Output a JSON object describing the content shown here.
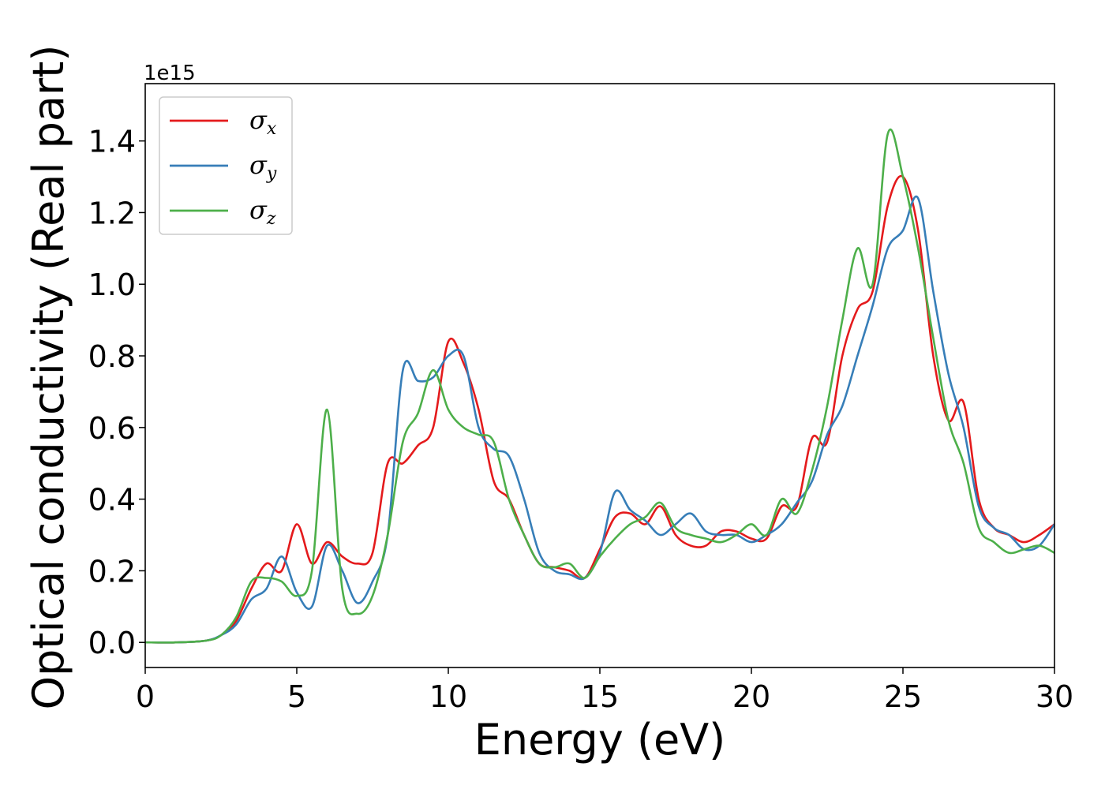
{
  "chart_data": {
    "type": "line",
    "xlabel": "Energy (eV)",
    "ylabel": "Optical conductivity (Real part)",
    "y_offset_text": "1e15",
    "xlim": [
      0,
      30
    ],
    "ylim": [
      -0.07,
      1.56
    ],
    "xticks": [
      0,
      5,
      10,
      15,
      20,
      25,
      30
    ],
    "xtick_labels": [
      "0",
      "5",
      "10",
      "15",
      "20",
      "25",
      "30"
    ],
    "yticks": [
      0.0,
      0.2,
      0.4,
      0.6,
      0.8,
      1.0,
      1.2,
      1.4
    ],
    "ytick_labels": [
      "0.0",
      "0.2",
      "0.4",
      "0.6",
      "0.8",
      "1.0",
      "1.2",
      "1.4"
    ],
    "grid": false,
    "legend_position": "upper-left",
    "x": [
      0,
      1,
      2,
      2.5,
      3,
      3.5,
      4,
      4.5,
      5,
      5.5,
      6,
      6.5,
      7,
      7.5,
      8,
      8.5,
      9,
      9.5,
      10,
      10.5,
      11,
      11.5,
      12,
      12.5,
      13,
      13.5,
      14,
      14.5,
      15,
      15.5,
      16,
      16.5,
      17,
      17.5,
      18,
      18.5,
      19,
      19.5,
      20,
      20.5,
      21,
      21.5,
      22,
      22.5,
      23,
      23.5,
      24,
      24.5,
      25,
      25.5,
      26,
      26.5,
      27,
      27.5,
      28,
      28.5,
      29,
      29.5,
      30
    ],
    "series": [
      {
        "name": "σ",
        "subscript": "x",
        "color": "#e41a1c",
        "values": [
          0,
          0,
          0.005,
          0.02,
          0.06,
          0.15,
          0.22,
          0.2,
          0.33,
          0.22,
          0.28,
          0.24,
          0.22,
          0.25,
          0.5,
          0.5,
          0.55,
          0.6,
          0.84,
          0.78,
          0.65,
          0.45,
          0.4,
          0.3,
          0.22,
          0.21,
          0.2,
          0.18,
          0.26,
          0.35,
          0.36,
          0.33,
          0.38,
          0.3,
          0.27,
          0.27,
          0.31,
          0.31,
          0.29,
          0.29,
          0.38,
          0.38,
          0.57,
          0.56,
          0.8,
          0.93,
          0.98,
          1.22,
          1.3,
          1.15,
          0.8,
          0.62,
          0.67,
          0.4,
          0.32,
          0.3,
          0.28,
          0.3,
          0.33
        ]
      },
      {
        "name": "σ",
        "subscript": "y",
        "color": "#377eb8",
        "values": [
          0,
          0,
          0.005,
          0.02,
          0.05,
          0.12,
          0.15,
          0.24,
          0.14,
          0.1,
          0.27,
          0.2,
          0.11,
          0.17,
          0.3,
          0.76,
          0.73,
          0.74,
          0.8,
          0.8,
          0.6,
          0.54,
          0.52,
          0.4,
          0.25,
          0.2,
          0.19,
          0.18,
          0.25,
          0.42,
          0.37,
          0.34,
          0.3,
          0.33,
          0.36,
          0.31,
          0.3,
          0.3,
          0.28,
          0.3,
          0.33,
          0.39,
          0.45,
          0.58,
          0.66,
          0.8,
          0.94,
          1.1,
          1.15,
          1.24,
          0.98,
          0.75,
          0.6,
          0.38,
          0.32,
          0.3,
          0.26,
          0.27,
          0.33
        ]
      },
      {
        "name": "σ",
        "subscript": "z",
        "color": "#4daf4a",
        "values": [
          0,
          0,
          0.005,
          0.02,
          0.07,
          0.17,
          0.18,
          0.17,
          0.13,
          0.2,
          0.65,
          0.15,
          0.08,
          0.13,
          0.3,
          0.56,
          0.64,
          0.76,
          0.65,
          0.6,
          0.58,
          0.56,
          0.4,
          0.3,
          0.22,
          0.21,
          0.22,
          0.18,
          0.24,
          0.29,
          0.33,
          0.35,
          0.39,
          0.32,
          0.3,
          0.29,
          0.28,
          0.3,
          0.33,
          0.3,
          0.4,
          0.36,
          0.48,
          0.66,
          0.9,
          1.1,
          1.0,
          1.42,
          1.3,
          1.1,
          0.85,
          0.62,
          0.5,
          0.32,
          0.28,
          0.25,
          0.26,
          0.27,
          0.25
        ]
      }
    ]
  }
}
